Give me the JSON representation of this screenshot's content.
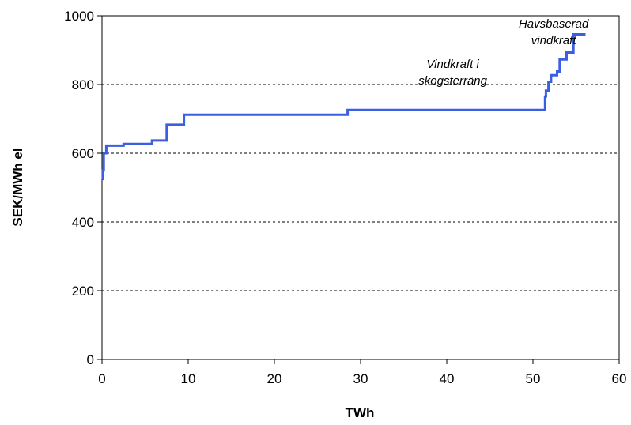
{
  "chart_data": {
    "type": "line",
    "step": true,
    "xlabel": "TWh",
    "ylabel": "SEK/MWh el",
    "xlim": [
      0,
      60
    ],
    "ylim": [
      0,
      1000
    ],
    "xticks": [
      "0",
      "10",
      "20",
      "30",
      "40",
      "50",
      "60"
    ],
    "yticks": [
      "0",
      "200",
      "400",
      "600",
      "800",
      "1000"
    ],
    "grid": "horizontal dashed",
    "series": [
      {
        "color": "#3a5fe0",
        "x": [
          0,
          0.1,
          0.1,
          0.2,
          0.2,
          0.5,
          0.5,
          2.5,
          2.5,
          5.8,
          5.8,
          7.5,
          7.5,
          9.5,
          9.5,
          28.5,
          28.5,
          51.4,
          51.4,
          51.5,
          51.5,
          51.8,
          51.8,
          52.1,
          52.1,
          52.8,
          52.8,
          53.1,
          53.1,
          53.9,
          53.9,
          54.7,
          54.7,
          56.1
        ],
        "y": [
          525,
          525,
          550,
          550,
          600,
          600,
          622,
          622,
          627,
          627,
          637,
          637,
          683,
          683,
          712,
          712,
          726,
          726,
          765,
          765,
          782,
          782,
          808,
          808,
          827,
          827,
          838,
          838,
          873,
          873,
          893,
          893,
          946,
          946
        ]
      }
    ],
    "annotations": [
      {
        "lines": [
          "Havsbaserad",
          "vindkraft"
        ],
        "x": 52.4,
        "y": 965
      },
      {
        "lines": [
          "Vindkraft i",
          "skogsterräng"
        ],
        "x": 40.7,
        "y": 848
      }
    ]
  }
}
